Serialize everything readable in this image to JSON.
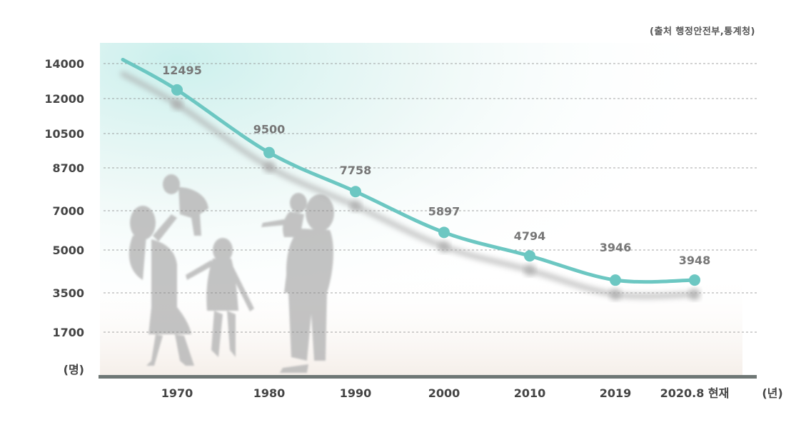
{
  "source": "(출처 행정안전부,통계청)",
  "chart_data": {
    "type": "line",
    "title": "",
    "ylabel": "(명)",
    "xlabel": "(년)",
    "y_ticks": [
      1700,
      3500,
      5000,
      7000,
      8700,
      10500,
      12000,
      14000
    ],
    "categories": [
      "1970",
      "1980",
      "1990",
      "2000",
      "2010",
      "2019",
      "2020.8 현재"
    ],
    "series": [
      {
        "name": "value",
        "values": [
          12495,
          9500,
          7758,
          5897,
          4794,
          3946,
          3948
        ]
      }
    ],
    "colors": {
      "line": "#6CC7C2",
      "marker": "#6CC7C2",
      "grid": "#888888",
      "baseline": "#6F7775",
      "tick_label": "#444444",
      "data_label": "#777777",
      "silhouette": "#b8b8b8",
      "shadow": "#a8a8a8"
    }
  }
}
